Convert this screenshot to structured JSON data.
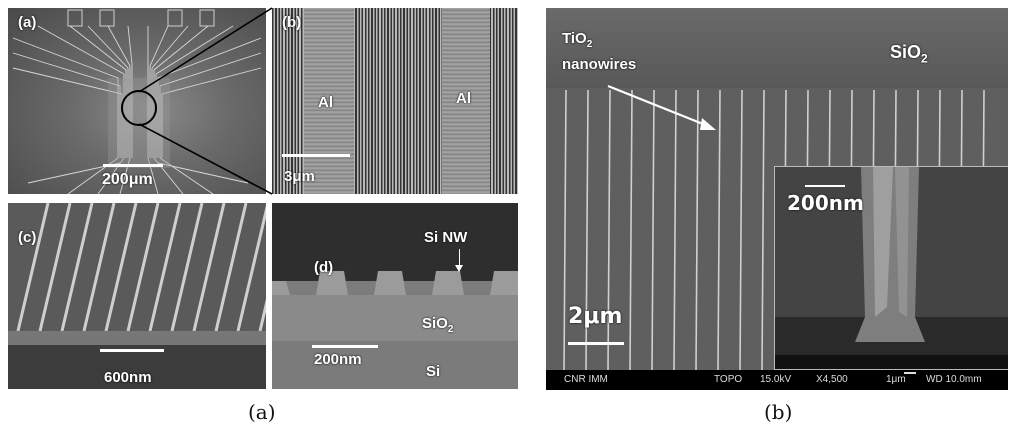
{
  "panels": {
    "a": {
      "tag": "(a)",
      "scale": "200μm"
    },
    "b": {
      "tag": "(b)",
      "label_left": "Al",
      "label_right": "Al",
      "scale": "3μm"
    },
    "c": {
      "tag": "(c)",
      "scale": "600nm"
    },
    "d": {
      "tag": "(d)",
      "nw_label": "Si NW",
      "oxide_label": "SiO",
      "oxide_sub": "2",
      "scale": "200nm",
      "substrate_label": "Si"
    }
  },
  "right": {
    "tio2_main": "TiO",
    "tio2_sub": "2",
    "tio2_line2": "nanowires",
    "sio2_main": "SiO",
    "sio2_sub": "2",
    "scale": "2μm",
    "inset_scale": "200nm",
    "footer": {
      "org": "CNR IMM",
      "mode": "TOPO",
      "kv": "15.0kV",
      "mag": "X4,500",
      "bar": "1μm",
      "wd": "WD 10.0mm"
    }
  },
  "captions": {
    "left": "(a)",
    "right": "(b)"
  }
}
